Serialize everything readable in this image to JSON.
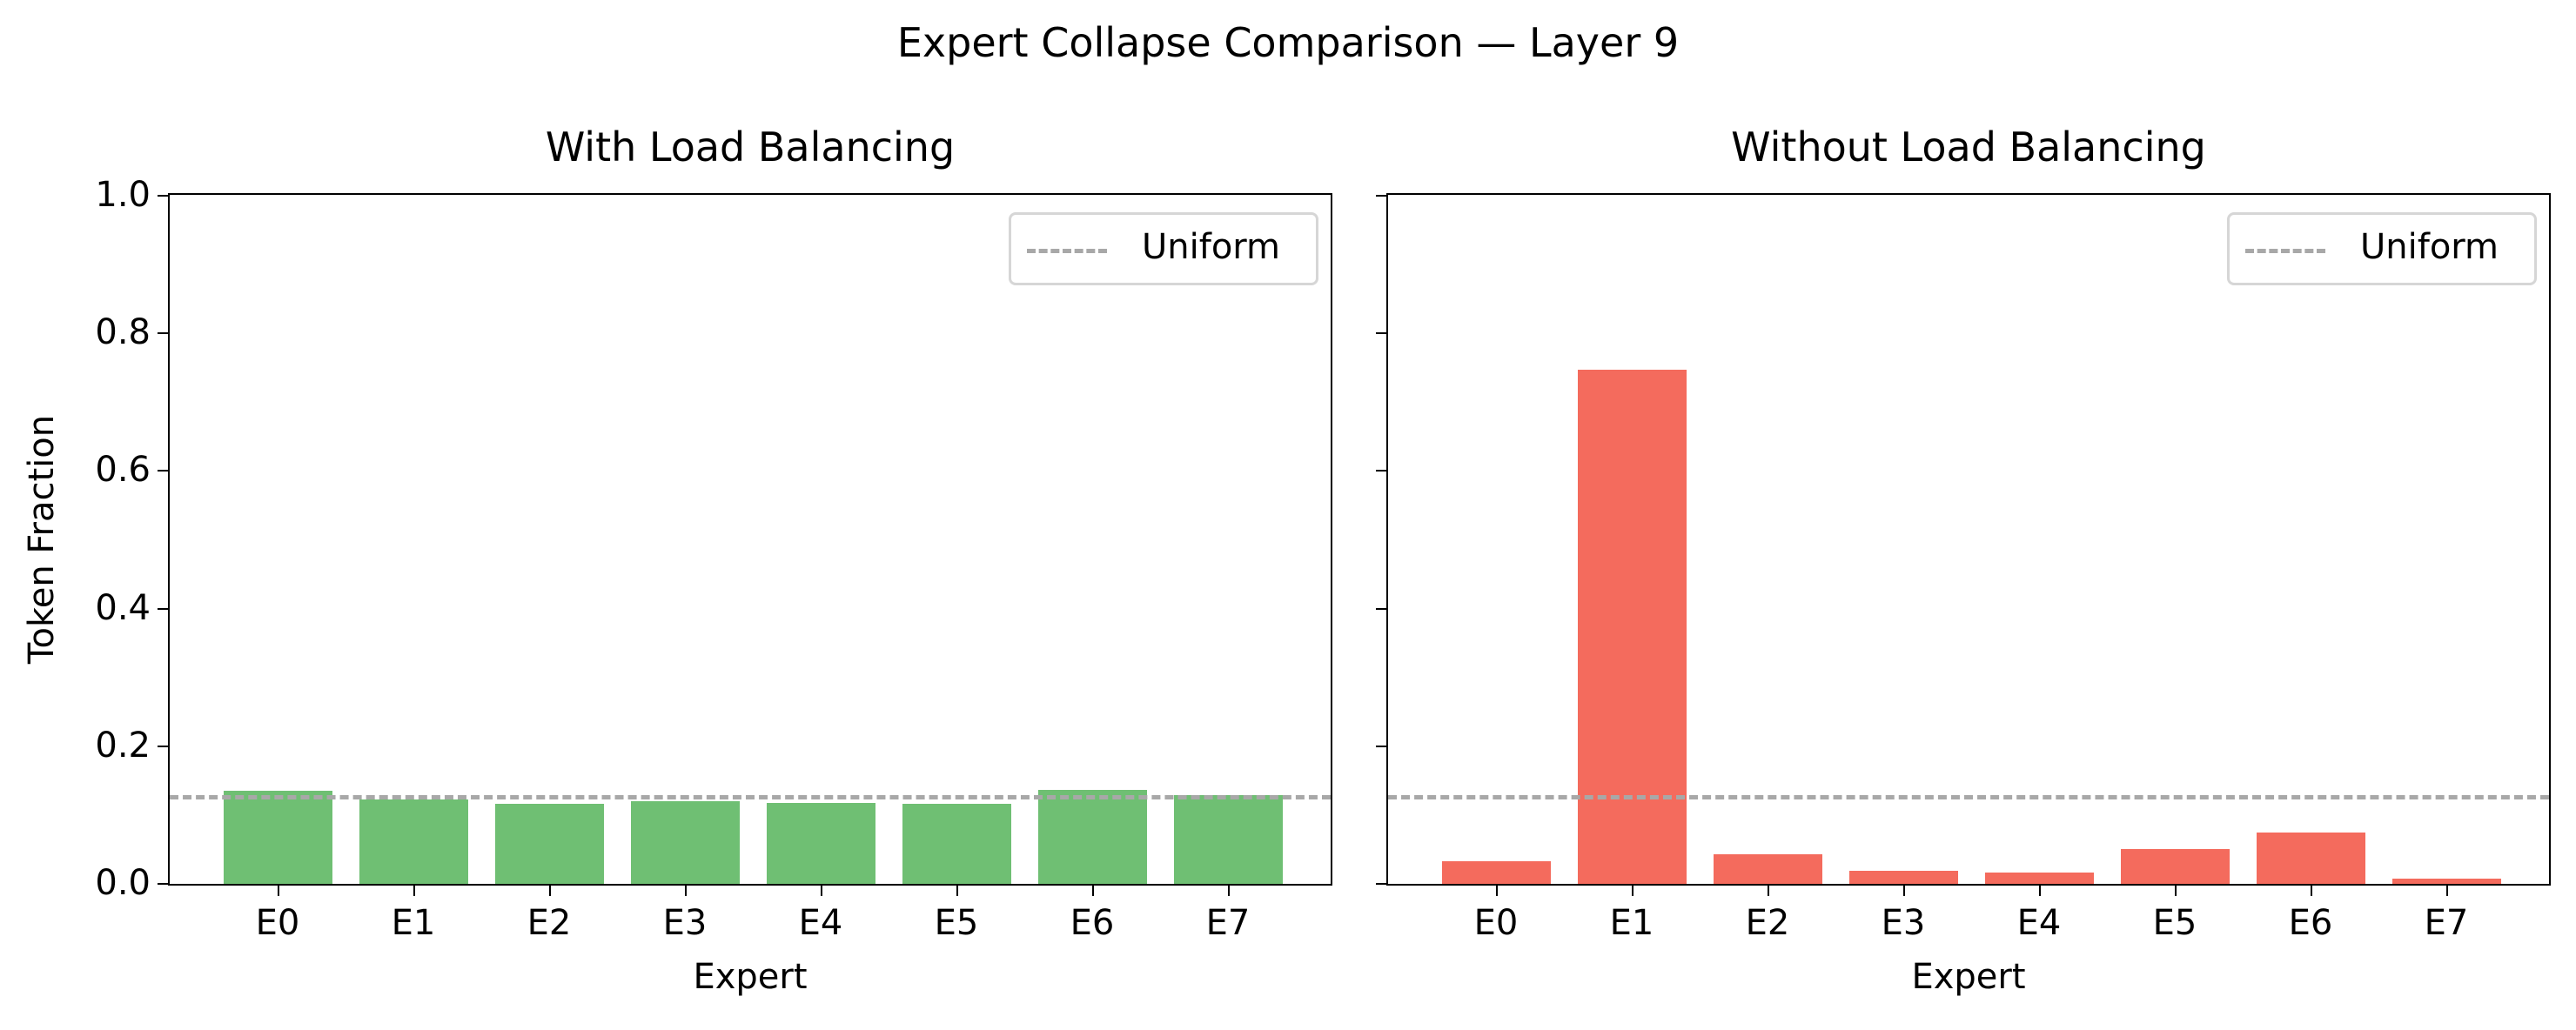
{
  "chart_data": [
    {
      "type": "bar",
      "title": "With Load Balancing",
      "categories": [
        "E0",
        "E1",
        "E2",
        "E3",
        "E4",
        "E5",
        "E6",
        "E7"
      ],
      "values": [
        0.135,
        0.123,
        0.116,
        0.12,
        0.117,
        0.116,
        0.136,
        0.129
      ],
      "xlabel": "Expert",
      "ylabel": "Token Fraction",
      "ylim": [
        0,
        1.0
      ],
      "yticks": [
        "0.0",
        "0.2",
        "0.4",
        "0.6",
        "0.8",
        "1.0"
      ],
      "bar_color": "#6fbf73",
      "reference_line": {
        "label": "Uniform",
        "y": 0.125,
        "style": "dashed",
        "color": "#a8a8a8"
      },
      "legend_position": "upper right",
      "grid": false
    },
    {
      "type": "bar",
      "title": "Without Load Balancing",
      "categories": [
        "E0",
        "E1",
        "E2",
        "E3",
        "E4",
        "E5",
        "E6",
        "E7"
      ],
      "values": [
        0.033,
        0.747,
        0.043,
        0.019,
        0.016,
        0.05,
        0.074,
        0.008
      ],
      "xlabel": "Expert",
      "ylabel": "",
      "ylim": [
        0,
        1.0
      ],
      "yticks": [
        "0.0",
        "0.2",
        "0.4",
        "0.6",
        "0.8",
        "1.0"
      ],
      "bar_color": "#f46b5d",
      "reference_line": {
        "label": "Uniform",
        "y": 0.125,
        "style": "dashed",
        "color": "#a8a8a8"
      },
      "legend_position": "upper right",
      "grid": false
    }
  ],
  "figure": {
    "suptitle": "Expert Collapse Comparison — Layer 9",
    "ylabel": "Token Fraction"
  }
}
